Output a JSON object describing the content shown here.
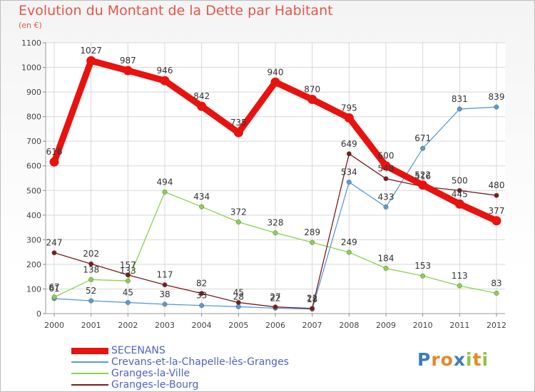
{
  "chart_data": {
    "type": "line",
    "title": "Evolution du Montant de la Dette par Habitant",
    "subtitle": "(en €)",
    "x": [
      "2000",
      "2001",
      "2002",
      "2003",
      "2004",
      "2005",
      "2006",
      "2007",
      "2008",
      "2009",
      "2010",
      "2011",
      "2012"
    ],
    "y_ticks": [
      "0",
      "100",
      "200",
      "300",
      "400",
      "500",
      "600",
      "700",
      "800",
      "900",
      "1000",
      "1100"
    ],
    "ylim": [
      0,
      1100
    ],
    "grid": true,
    "legend_position": "bottom-left",
    "series": [
      {
        "name": "SECENANS",
        "color": "#e8120f",
        "values": [
          616,
          1027,
          987,
          946,
          842,
          735,
          940,
          870,
          795,
          600,
          522,
          445,
          377
        ],
        "labels": [
          "616",
          "1027",
          "987",
          "946",
          "842",
          "735",
          "940",
          "870",
          "795",
          "600",
          "522",
          "445",
          "377"
        ]
      },
      {
        "name": "Crevans-et-la-Chapelle-lès-Granges",
        "color": "#5a9bd5",
        "values": [
          61,
          52,
          45,
          38,
          33,
          28,
          22,
          18,
          534,
          433,
          671,
          831,
          839
        ],
        "labels": [
          "61",
          "52",
          "45",
          "38",
          "33",
          "28",
          "22",
          "18",
          "534",
          "433",
          "671",
          "831",
          "839"
        ]
      },
      {
        "name": "Granges-la-Ville",
        "color": "#8dd150",
        "values": [
          67,
          138,
          133,
          494,
          434,
          372,
          328,
          289,
          249,
          184,
          153,
          113,
          83
        ],
        "labels": [
          "67",
          "138",
          "133",
          "494",
          "434",
          "372",
          "328",
          "289",
          "249",
          "184",
          "153",
          "113",
          "83"
        ]
      },
      {
        "name": "Granges-le-Bourg",
        "color": "#7b1c1c",
        "values": [
          247,
          202,
          157,
          117,
          82,
          45,
          27,
          21,
          649,
          548,
          516,
          500,
          480
        ],
        "labels": [
          "247",
          "202",
          "157",
          "117",
          "82",
          "45",
          "27",
          "21",
          "649",
          "548",
          "516",
          "500",
          "480"
        ]
      }
    ]
  },
  "branding": {
    "logo_letters": [
      {
        "char": "P",
        "color": "#3a7cc0"
      },
      {
        "char": "r",
        "color": "#e7872a"
      },
      {
        "char": "o",
        "color": "#e7872a"
      },
      {
        "char": "x",
        "color": "#3a7cc0"
      },
      {
        "char": "i",
        "color": "#8dc63f"
      },
      {
        "char": "t",
        "color": "#e7872a"
      },
      {
        "char": "i",
        "color": "#8dc63f"
      }
    ]
  }
}
